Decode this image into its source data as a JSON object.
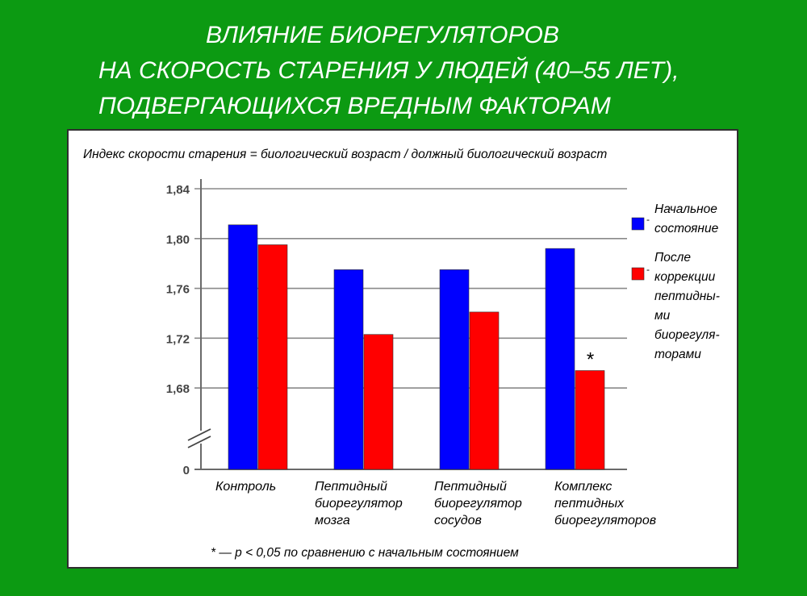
{
  "title_lines": [
    "ВЛИЯНИЕ БИОРЕГУЛЯТОРОВ",
    "НА СКОРОСТЬ СТАРЕНИЯ У ЛЮДЕЙ (40–55 ЛЕТ),",
    "ПОДВЕРГАЮЩИХСЯ ВРЕДНЫМ ФАКТОРАМ"
  ],
  "colors": {
    "background": "#0c9a12",
    "series_initial": "#0000ff",
    "series_after": "#ff0000"
  },
  "chart_data": {
    "type": "bar",
    "subtitle": "Индекс скорости старения = биологический возраст / должный биологический возраст",
    "categories": [
      [
        "Контроль"
      ],
      [
        "Пептидный",
        "биорегулятор",
        "мозга"
      ],
      [
        "Пептидный",
        "биорегулятор",
        "сосудов"
      ],
      [
        "Комплекс",
        "пептидных",
        "биорегуляторов"
      ]
    ],
    "series": [
      {
        "name": [
          "Начальное",
          "состояние"
        ],
        "color": "#0000ff",
        "values": [
          1.811,
          1.775,
          1.775,
          1.792
        ]
      },
      {
        "name": [
          "После",
          "коррекции",
          "пептидны-",
          "ми",
          "биорегуля-",
          "торами"
        ],
        "color": "#ff0000",
        "values": [
          1.795,
          1.723,
          1.741,
          1.694
        ]
      }
    ],
    "yticks": [
      "1,84",
      "1,80",
      "1,76",
      "1,72",
      "1,68",
      "0"
    ],
    "ylim": [
      1.66,
      1.84
    ],
    "axis_break": true,
    "significance_marker": {
      "category_index": 3,
      "series_index": 1,
      "text": "*"
    },
    "footnote": "* — p < 0,05 по сравнению с начальным состоянием",
    "grid": true,
    "legend_position": "right"
  }
}
